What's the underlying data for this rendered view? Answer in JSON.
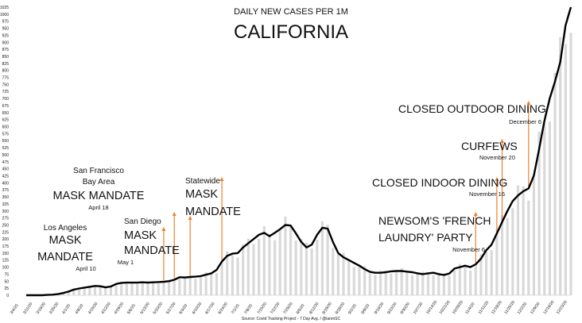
{
  "chart_data": {
    "type": "line",
    "title": "DAILY NEW CASES PER 1M",
    "subtitle": "CALIFORNIA",
    "source": "Source: Covid Tracking Project - 7 Day Avg. / @ianmSC",
    "ylim": [
      0,
      1025
    ],
    "y_ticks": [
      0,
      25,
      50,
      75,
      100,
      125,
      150,
      175,
      200,
      225,
      250,
      275,
      300,
      325,
      350,
      375,
      400,
      425,
      450,
      475,
      500,
      525,
      550,
      575,
      600,
      625,
      650,
      675,
      700,
      725,
      750,
      775,
      800,
      825,
      850,
      875,
      900,
      925,
      950,
      975,
      1000,
      1025
    ],
    "x_tick_labels": [
      "3/4/20",
      "3/11/20",
      "3/18/20",
      "3/25/20",
      "4/1/20",
      "4/8/20",
      "4/15/20",
      "4/22/20",
      "4/29/20",
      "5/6/20",
      "5/13/20",
      "5/20/20",
      "5/27/20",
      "6/3/20",
      "6/10/20",
      "6/17/20",
      "6/24/20",
      "7/1/20",
      "7/8/20",
      "7/15/20",
      "7/22/20",
      "7/29/20",
      "8/5/20",
      "8/12/20",
      "8/19/20",
      "8/26/20",
      "9/2/20",
      "9/9/20",
      "9/16/20",
      "9/23/20",
      "9/30/20",
      "10/7/20",
      "10/14/20",
      "10/21/20",
      "10/28/20",
      "11/4/20",
      "11/11/20",
      "11/18/20",
      "11/25/20",
      "12/2/20",
      "12/9/20",
      "12/16/20",
      "12/23/20"
    ],
    "series": [
      {
        "values": [
          0,
          0,
          0,
          0,
          1,
          2,
          4,
          8,
          13,
          20,
          24,
          27,
          30,
          33,
          32,
          28,
          31,
          40,
          44,
          45,
          45,
          45,
          46,
          45,
          46,
          47,
          48,
          50,
          55,
          64,
          63,
          65,
          66,
          68,
          73,
          78,
          90,
          120,
          140,
          148,
          150,
          170,
          185,
          200,
          215,
          222,
          210,
          222,
          235,
          250,
          248,
          220,
          190,
          170,
          180,
          215,
          240,
          237,
          190,
          150,
          135,
          125,
          115,
          105,
          93,
          83,
          80,
          80,
          82,
          85,
          86,
          86,
          84,
          82,
          78,
          75,
          78,
          80,
          75,
          72,
          77,
          95,
          100,
          105,
          100,
          110,
          130,
          160,
          180,
          220,
          260,
          300,
          335,
          355,
          370,
          380,
          425,
          520,
          620,
          700,
          760,
          830,
          960,
          1025
        ]
      }
    ]
  },
  "annotations": [
    {
      "lines": [
        "Los Angeles"
      ],
      "headline": [
        "MASK",
        "MANDATE"
      ],
      "date": "April 10",
      "date_index": 26
    },
    {
      "lines": [
        "San Francisco",
        "Bay Area"
      ],
      "headline": [
        "MASK MANDATE"
      ],
      "date": "April 18",
      "date_index": 28
    },
    {
      "lines": [
        "San Diego"
      ],
      "headline": [
        "MASK",
        "MANDATE"
      ],
      "date": "May 1",
      "date_index": 31
    },
    {
      "lines": [
        "Statewide"
      ],
      "headline": [
        "MASK",
        "MANDATE"
      ],
      "date": "",
      "date_index": 37
    },
    {
      "lines": [],
      "headline": [
        "NEWSOM'S 'FRENCH",
        "LAUNDRY' PARTY"
      ],
      "date": "November 6",
      "date_index": 85
    },
    {
      "lines": [],
      "headline": [
        "CLOSED INDOOR DINING"
      ],
      "date": "November 16",
      "date_index": 89
    },
    {
      "lines": [],
      "headline": [
        "CURFEWS"
      ],
      "date": "November 20",
      "date_index": 90
    },
    {
      "lines": [],
      "headline": [
        "CLOSED OUTDOOR DINING"
      ],
      "date": "December 6",
      "date_index": 95
    }
  ],
  "colors": {
    "line": "#000000",
    "marker": "#e8822f",
    "bars": "#d9d9d9",
    "tick_text": "#666666",
    "text": "#111111"
  }
}
